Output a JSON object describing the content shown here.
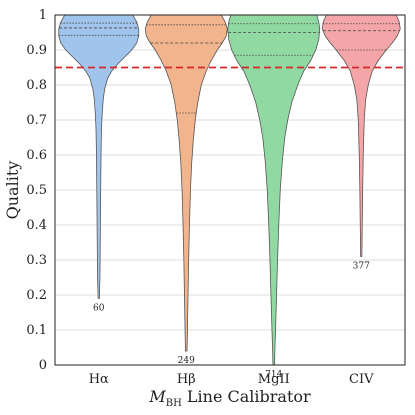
{
  "chart_data": {
    "type": "violin",
    "ylabel": "Quality",
    "xlabel_math": "M",
    "xlabel_sub": "BH",
    "xlabel_rest": " Line Calibrator",
    "ylim": [
      0,
      1
    ],
    "yticks": [
      "0",
      "0.1",
      "0.2",
      "0.3",
      "0.4",
      "0.5",
      "0.6",
      "0.7",
      "0.8",
      "0.9",
      "1"
    ],
    "grid": true,
    "threshold": {
      "value": 0.85,
      "color": "#d62728",
      "style": "dashed"
    },
    "categories": [
      "Hα",
      "Hβ",
      "MgII",
      "CIV"
    ],
    "series": [
      {
        "label": "Hα",
        "color": "#a1c4ec",
        "count": "60",
        "min": 0.19,
        "quartiles": [
          0.942,
          0.963,
          0.977
        ],
        "profile": [
          [
            0.19,
            0.6
          ],
          [
            0.25,
            1.2
          ],
          [
            0.35,
            1.5
          ],
          [
            0.45,
            1.8
          ],
          [
            0.55,
            2.1
          ],
          [
            0.62,
            2.4
          ],
          [
            0.68,
            2.8
          ],
          [
            0.72,
            3.5
          ],
          [
            0.76,
            4.5
          ],
          [
            0.79,
            6
          ],
          [
            0.82,
            9
          ],
          [
            0.84,
            13
          ],
          [
            0.86,
            19
          ],
          [
            0.88,
            26
          ],
          [
            0.9,
            33
          ],
          [
            0.92,
            38
          ],
          [
            0.94,
            40
          ],
          [
            0.96,
            40
          ],
          [
            0.98,
            38
          ],
          [
            1.0,
            34
          ]
        ]
      },
      {
        "label": "Hβ",
        "color": "#f2b48c",
        "count": "249",
        "min": 0.04,
        "quartiles": [
          0.72,
          0.92,
          0.972
        ],
        "profile": [
          [
            0.04,
            0.8
          ],
          [
            0.1,
            1.2
          ],
          [
            0.2,
            1.8
          ],
          [
            0.3,
            2.4
          ],
          [
            0.4,
            3.2
          ],
          [
            0.5,
            4.2
          ],
          [
            0.58,
            5.5
          ],
          [
            0.64,
            7
          ],
          [
            0.7,
            9
          ],
          [
            0.75,
            11.5
          ],
          [
            0.8,
            15
          ],
          [
            0.84,
            20
          ],
          [
            0.87,
            25
          ],
          [
            0.9,
            31
          ],
          [
            0.92,
            36
          ],
          [
            0.94,
            40
          ],
          [
            0.96,
            41
          ],
          [
            0.98,
            39
          ],
          [
            1.0,
            35
          ]
        ]
      },
      {
        "label": "MgII",
        "color": "#90d9a3",
        "count": "714",
        "min": 0.0,
        "quartiles": [
          0.885,
          0.95,
          0.975
        ],
        "profile": [
          [
            0.0,
            0.8
          ],
          [
            0.05,
            1.2
          ],
          [
            0.1,
            1.8
          ],
          [
            0.2,
            2.8
          ],
          [
            0.3,
            3.8
          ],
          [
            0.4,
            5
          ],
          [
            0.5,
            6.5
          ],
          [
            0.58,
            8.5
          ],
          [
            0.65,
            11
          ],
          [
            0.7,
            14
          ],
          [
            0.75,
            18
          ],
          [
            0.8,
            24
          ],
          [
            0.84,
            30
          ],
          [
            0.87,
            37
          ],
          [
            0.9,
            42
          ],
          [
            0.93,
            45
          ],
          [
            0.96,
            46
          ],
          [
            0.98,
            45
          ],
          [
            1.0,
            43
          ]
        ]
      },
      {
        "label": "CIV",
        "color": "#f4a5a8",
        "count": "377",
        "min": 0.31,
        "quartiles": [
          0.9,
          0.955,
          0.975
        ],
        "profile": [
          [
            0.31,
            0.6
          ],
          [
            0.4,
            1
          ],
          [
            0.5,
            1.4
          ],
          [
            0.6,
            2
          ],
          [
            0.7,
            3
          ],
          [
            0.76,
            4.5
          ],
          [
            0.8,
            7
          ],
          [
            0.84,
            11
          ],
          [
            0.87,
            17
          ],
          [
            0.9,
            25
          ],
          [
            0.92,
            31
          ],
          [
            0.94,
            36
          ],
          [
            0.96,
            39
          ],
          [
            0.98,
            38
          ],
          [
            1.0,
            35
          ]
        ]
      }
    ]
  }
}
